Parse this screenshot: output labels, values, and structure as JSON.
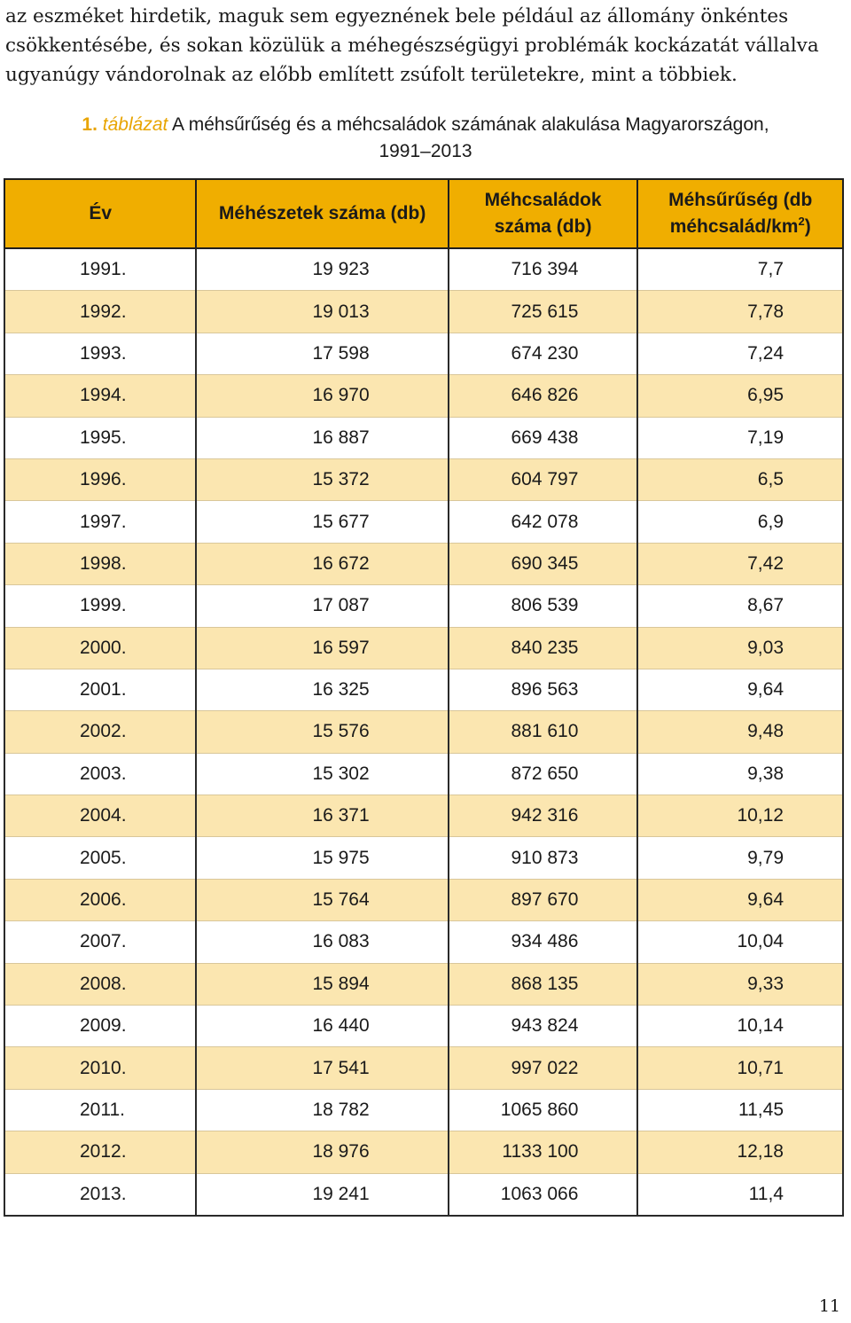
{
  "intro": {
    "lines": [
      "az eszméket hirdetik, maguk sem egyeznének bele például az állomány önkéntes",
      "csökkentésébe, és sokan közülük a méhegészségügyi problémák kockázatát vállalva",
      "ugyanúgy vándorolnak az előbb említett zsúfolt területekre, mint a többiek."
    ]
  },
  "caption": {
    "number": "1.",
    "label": "táblázat",
    "title_line1": "A méhsűrűség és a méhcsaládok számának alakulása Magyarországon,",
    "title_line2": "1991–2013"
  },
  "table": {
    "headers": {
      "year": "Év",
      "apiaries": "Méhészetek száma (db)",
      "colonies": "Méhcsaládok száma (db)",
      "density_main": "Méhsűrűség (db méhcsalád/km",
      "density_sup": "2",
      "density_close": ")"
    },
    "rows": [
      {
        "year": "1991.",
        "apiaries": "19 923",
        "colonies": "716 394",
        "density": "7,7"
      },
      {
        "year": "1992.",
        "apiaries": "19 013",
        "colonies": "725 615",
        "density": "7,78"
      },
      {
        "year": "1993.",
        "apiaries": "17 598",
        "colonies": "674 230",
        "density": "7,24"
      },
      {
        "year": "1994.",
        "apiaries": "16 970",
        "colonies": "646 826",
        "density": "6,95"
      },
      {
        "year": "1995.",
        "apiaries": "16 887",
        "colonies": "669 438",
        "density": "7,19"
      },
      {
        "year": "1996.",
        "apiaries": "15 372",
        "colonies": "604 797",
        "density": "6,5"
      },
      {
        "year": "1997.",
        "apiaries": "15 677",
        "colonies": "642 078",
        "density": "6,9"
      },
      {
        "year": "1998.",
        "apiaries": "16 672",
        "colonies": "690 345",
        "density": "7,42"
      },
      {
        "year": "1999.",
        "apiaries": "17 087",
        "colonies": "806 539",
        "density": "8,67"
      },
      {
        "year": "2000.",
        "apiaries": "16 597",
        "colonies": "840 235",
        "density": "9,03"
      },
      {
        "year": "2001.",
        "apiaries": "16 325",
        "colonies": "896 563",
        "density": "9,64"
      },
      {
        "year": "2002.",
        "apiaries": "15 576",
        "colonies": "881 610",
        "density": "9,48"
      },
      {
        "year": "2003.",
        "apiaries": "15 302",
        "colonies": "872 650",
        "density": "9,38"
      },
      {
        "year": "2004.",
        "apiaries": "16 371",
        "colonies": "942 316",
        "density": "10,12"
      },
      {
        "year": "2005.",
        "apiaries": "15 975",
        "colonies": "910 873",
        "density": "9,79"
      },
      {
        "year": "2006.",
        "apiaries": "15 764",
        "colonies": "897 670",
        "density": "9,64"
      },
      {
        "year": "2007.",
        "apiaries": "16 083",
        "colonies": "934 486",
        "density": "10,04"
      },
      {
        "year": "2008.",
        "apiaries": "15 894",
        "colonies": "868 135",
        "density": "9,33"
      },
      {
        "year": "2009.",
        "apiaries": "16 440",
        "colonies": "943 824",
        "density": "10,14"
      },
      {
        "year": "2010.",
        "apiaries": "17 541",
        "colonies": "997 022",
        "density": "10,71"
      },
      {
        "year": "2011.",
        "apiaries": "18 782",
        "colonies": "1065 860",
        "density": "11,45"
      },
      {
        "year": "2012.",
        "apiaries": "18 976",
        "colonies": "1133 100",
        "density": "12,18"
      },
      {
        "year": "2013.",
        "apiaries": "19 241",
        "colonies": "1063 066",
        "density": "11,4"
      }
    ]
  },
  "page_number": "11",
  "colors": {
    "header_bg": "#f0ae00",
    "alt_row_bg": "#fbe6b0",
    "caption_accent": "#e8a400"
  }
}
